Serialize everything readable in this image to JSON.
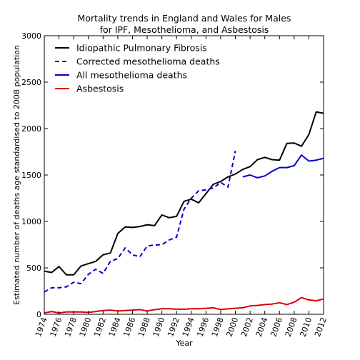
{
  "chart_data": {
    "type": "line",
    "title": "Mortality trends in England and Wales for Males",
    "subtitle": "for IPF, Mesothelioma, and Asbestosis",
    "xlabel": "Year",
    "ylabel": "Estimated number of deaths age standardised to 2008 population",
    "xlim": [
      1974,
      2012
    ],
    "ylim": [
      0,
      3000
    ],
    "xticks": [
      "1974",
      "1976",
      "1978",
      "1980",
      "1982",
      "1984",
      "1986",
      "1988",
      "1990",
      "1992",
      "1994",
      "1996",
      "1998",
      "2000",
      "2002",
      "2004",
      "2006",
      "2008",
      "2010",
      "2012"
    ],
    "yticks": [
      "0",
      "500",
      "1000",
      "1500",
      "2000",
      "2500",
      "3000"
    ],
    "grid": false,
    "legend_position": "top-left",
    "series": [
      {
        "name": "Idiopathic Pulmonary Fibrosis",
        "color": "#000000",
        "style": "solid",
        "x": [
          1974,
          1975,
          1976,
          1977,
          1978,
          1979,
          1980,
          1981,
          1982,
          1983,
          1984,
          1985,
          1986,
          1987,
          1988,
          1989,
          1990,
          1991,
          1992,
          1993,
          1994,
          1995,
          1996,
          1997,
          1998,
          1999,
          2000,
          2001,
          2002,
          2003,
          2004,
          2005,
          2006,
          2007,
          2008,
          2009,
          2010,
          2011,
          2012
        ],
        "y": [
          465,
          450,
          515,
          425,
          425,
          520,
          545,
          570,
          640,
          660,
          870,
          940,
          935,
          945,
          965,
          955,
          1070,
          1040,
          1055,
          1215,
          1240,
          1200,
          1300,
          1400,
          1430,
          1480,
          1510,
          1560,
          1590,
          1665,
          1690,
          1665,
          1660,
          1840,
          1845,
          1810,
          1935,
          2180,
          2165
        ]
      },
      {
        "name": "Corrected mesothelioma deaths",
        "color": "#0000cc",
        "style": "dashed",
        "x": [
          1974,
          1975,
          1976,
          1977,
          1978,
          1979,
          1980,
          1981,
          1982,
          1983,
          1984,
          1985,
          1986,
          1987,
          1988,
          1989,
          1990,
          1991,
          1992,
          1993,
          1994,
          1995,
          1996,
          1997,
          1998,
          1999,
          2000
        ],
        "y": [
          240,
          285,
          285,
          295,
          345,
          330,
          430,
          485,
          440,
          570,
          600,
          715,
          640,
          620,
          735,
          745,
          750,
          800,
          830,
          1130,
          1250,
          1330,
          1340,
          1360,
          1420,
          1370,
          1760
        ]
      },
      {
        "name": "All mesothelioma deaths",
        "color": "#0000cc",
        "style": "solid",
        "x": [
          2001,
          2002,
          2003,
          2004,
          2005,
          2006,
          2007,
          2008,
          2009,
          2010,
          2011,
          2012
        ],
        "y": [
          1480,
          1500,
          1470,
          1490,
          1540,
          1580,
          1580,
          1600,
          1715,
          1650,
          1660,
          1680
        ]
      },
      {
        "name": "Asbestosis",
        "color": "#dd0000",
        "style": "solid",
        "x": [
          1974,
          1975,
          1976,
          1977,
          1978,
          1979,
          1980,
          1981,
          1982,
          1983,
          1984,
          1985,
          1986,
          1987,
          1988,
          1989,
          1990,
          1991,
          1992,
          1993,
          1994,
          1995,
          1996,
          1997,
          1998,
          1999,
          2000,
          2001,
          2002,
          2003,
          2004,
          2005,
          2006,
          2007,
          2008,
          2009,
          2010,
          2011,
          2012
        ],
        "y": [
          15,
          30,
          15,
          25,
          25,
          25,
          20,
          30,
          40,
          45,
          35,
          40,
          45,
          50,
          35,
          50,
          60,
          60,
          55,
          55,
          60,
          60,
          65,
          70,
          50,
          60,
          65,
          70,
          90,
          95,
          105,
          110,
          125,
          105,
          130,
          180,
          155,
          145,
          165
        ]
      }
    ]
  }
}
